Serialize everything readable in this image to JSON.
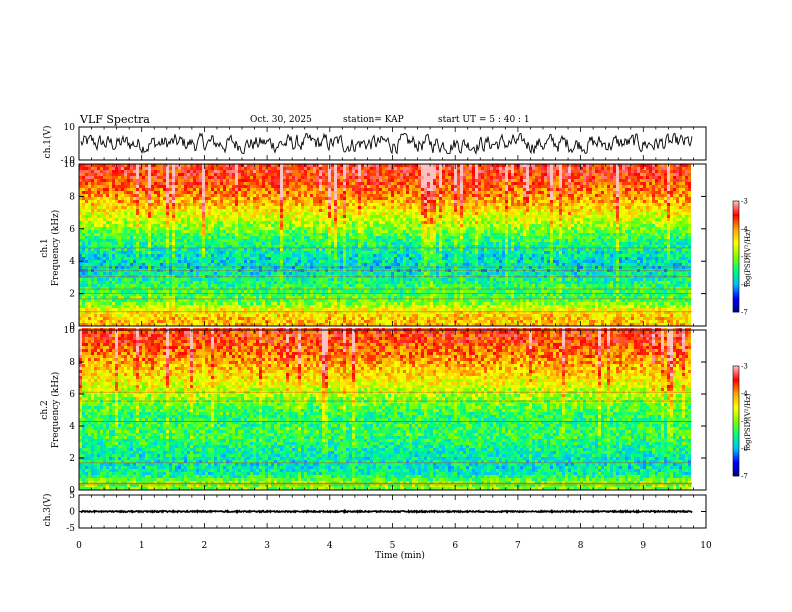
{
  "header": {
    "title": "VLF Spectra",
    "date": "Oct. 30, 2025",
    "station": "station= KAP",
    "start_time": "start  UT =   5 : 40 : 1"
  },
  "chart_data": [
    {
      "type": "line",
      "panel": "ch.1 waveform",
      "ylabel": "ch.1(V)",
      "ylim": [
        -10,
        10
      ],
      "yticks": [
        "10",
        "-10"
      ],
      "xlim": [
        0,
        9.8
      ],
      "description_values": {
        "baseline_V": 0,
        "amplitude_V": 6
      }
    },
    {
      "type": "heatmap",
      "panel": "ch.1 spectrogram",
      "ylabel": "Frequency (kHz)",
      "channel_label": "ch.1",
      "ylim": [
        0,
        10
      ],
      "yticks": [
        "0",
        "2",
        "4",
        "6",
        "8",
        "10"
      ],
      "colorbar": {
        "label": "log(PSD)(V²/Hz)",
        "range": [
          -7,
          -3
        ],
        "ticks": [
          "-3",
          "-4",
          "-5",
          "-6",
          "-7"
        ]
      },
      "profile_log_psd": [
        {
          "freq_khz": 0.5,
          "value": -4.2
        },
        {
          "freq_khz": 1.0,
          "value": -4.5
        },
        {
          "freq_khz": 1.5,
          "value": -5.2
        },
        {
          "freq_khz": 2.5,
          "value": -5.4
        },
        {
          "freq_khz": 3.5,
          "value": -5.8
        },
        {
          "freq_khz": 4.5,
          "value": -5.7
        },
        {
          "freq_khz": 5.5,
          "value": -5.3
        },
        {
          "freq_khz": 6.5,
          "value": -4.8
        },
        {
          "freq_khz": 7.5,
          "value": -4.2
        },
        {
          "freq_khz": 8.5,
          "value": -3.8
        },
        {
          "freq_khz": 9.5,
          "value": -3.5
        }
      ]
    },
    {
      "type": "heatmap",
      "panel": "ch.2 spectrogram",
      "ylabel": "Frequency (kHz)",
      "channel_label": "ch.2",
      "ylim": [
        0,
        10
      ],
      "yticks": [
        "0",
        "2",
        "4",
        "6",
        "8",
        "10"
      ],
      "colorbar": {
        "label": "log(PSD)(V²/Hz)",
        "range": [
          -7,
          -3
        ],
        "ticks": [
          "-3",
          "-4",
          "-5",
          "-6",
          "-7"
        ]
      },
      "profile_log_psd": [
        {
          "freq_khz": 0.5,
          "value": -5.0
        },
        {
          "freq_khz": 1.0,
          "value": -5.6
        },
        {
          "freq_khz": 1.5,
          "value": -5.7
        },
        {
          "freq_khz": 2.5,
          "value": -5.6
        },
        {
          "freq_khz": 3.5,
          "value": -5.3
        },
        {
          "freq_khz": 4.5,
          "value": -5.4
        },
        {
          "freq_khz": 5.5,
          "value": -5.1
        },
        {
          "freq_khz": 6.5,
          "value": -4.6
        },
        {
          "freq_khz": 7.5,
          "value": -4.2
        },
        {
          "freq_khz": 8.5,
          "value": -3.9
        },
        {
          "freq_khz": 9.5,
          "value": -3.6
        }
      ]
    },
    {
      "type": "line",
      "panel": "ch.3 waveform",
      "ylabel": "ch.3(V)",
      "ylim": [
        -5,
        5
      ],
      "yticks": [
        "5",
        "0",
        "-5"
      ],
      "xlim": [
        0,
        9.8
      ],
      "description_values": {
        "baseline_V": 0,
        "amplitude_V": 0.4
      }
    }
  ],
  "x_axis": {
    "label": "Time (min)",
    "range": [
      0,
      10
    ],
    "ticks": [
      "0",
      "1",
      "2",
      "3",
      "4",
      "5",
      "6",
      "7",
      "8",
      "9",
      "10"
    ]
  },
  "colors": {
    "scale": [
      "#000080",
      "#0000ff",
      "#00bfff",
      "#00ff7f",
      "#7fff00",
      "#ffff00",
      "#ffa500",
      "#ff0000",
      "#ffc0c0"
    ]
  }
}
